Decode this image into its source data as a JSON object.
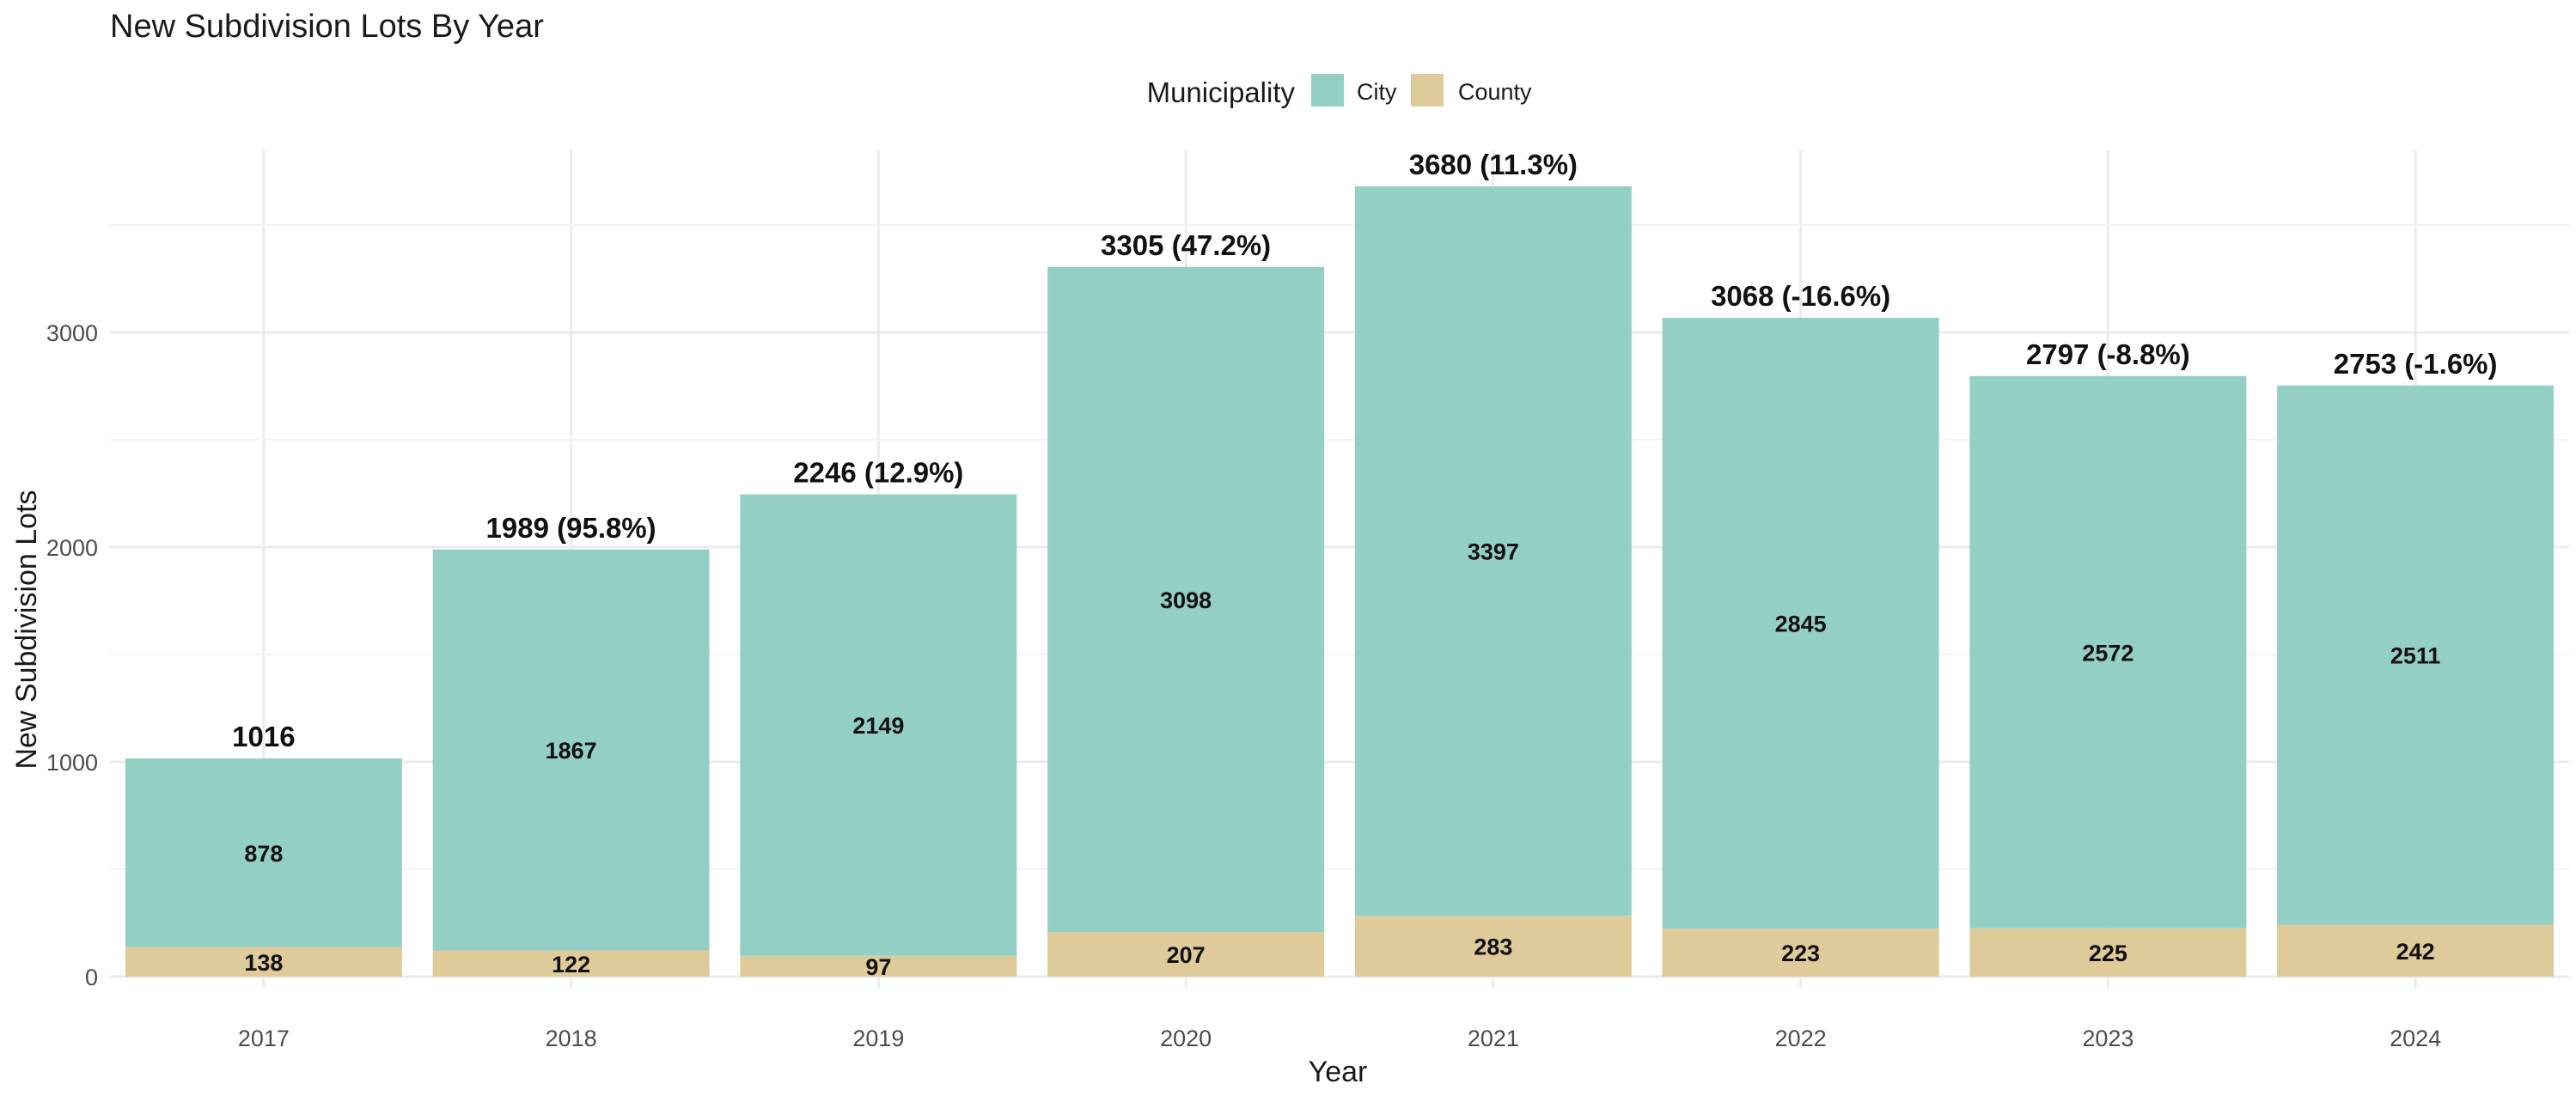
{
  "chart_data": {
    "type": "bar",
    "stacked": true,
    "title": "New Subdivision Lots By Year",
    "xlabel": "Year",
    "ylabel": "New Subdivision Lots",
    "legend": {
      "title": "Municipality",
      "position": "top",
      "entries": [
        "City",
        "County"
      ]
    },
    "categories": [
      "2017",
      "2018",
      "2019",
      "2020",
      "2021",
      "2022",
      "2023",
      "2024"
    ],
    "series": [
      {
        "name": "County",
        "color": "#DFCA9A",
        "values": [
          138,
          122,
          97,
          207,
          283,
          223,
          225,
          242
        ]
      },
      {
        "name": "City",
        "color": "#94CFC6",
        "values": [
          878,
          1867,
          2149,
          3098,
          3397,
          2845,
          2572,
          2511
        ]
      }
    ],
    "totals_labels": [
      "1016",
      "1989 (95.8%)",
      "2246 (12.9%)",
      "3305 (47.2%)",
      "3680 (11.3%)",
      "3068 (-16.6%)",
      "2797 (-8.8%)",
      "2753 (-1.6%)"
    ],
    "ylim": [
      0,
      3800
    ],
    "yticks": [
      0,
      1000,
      2000,
      3000
    ],
    "grid": true
  }
}
